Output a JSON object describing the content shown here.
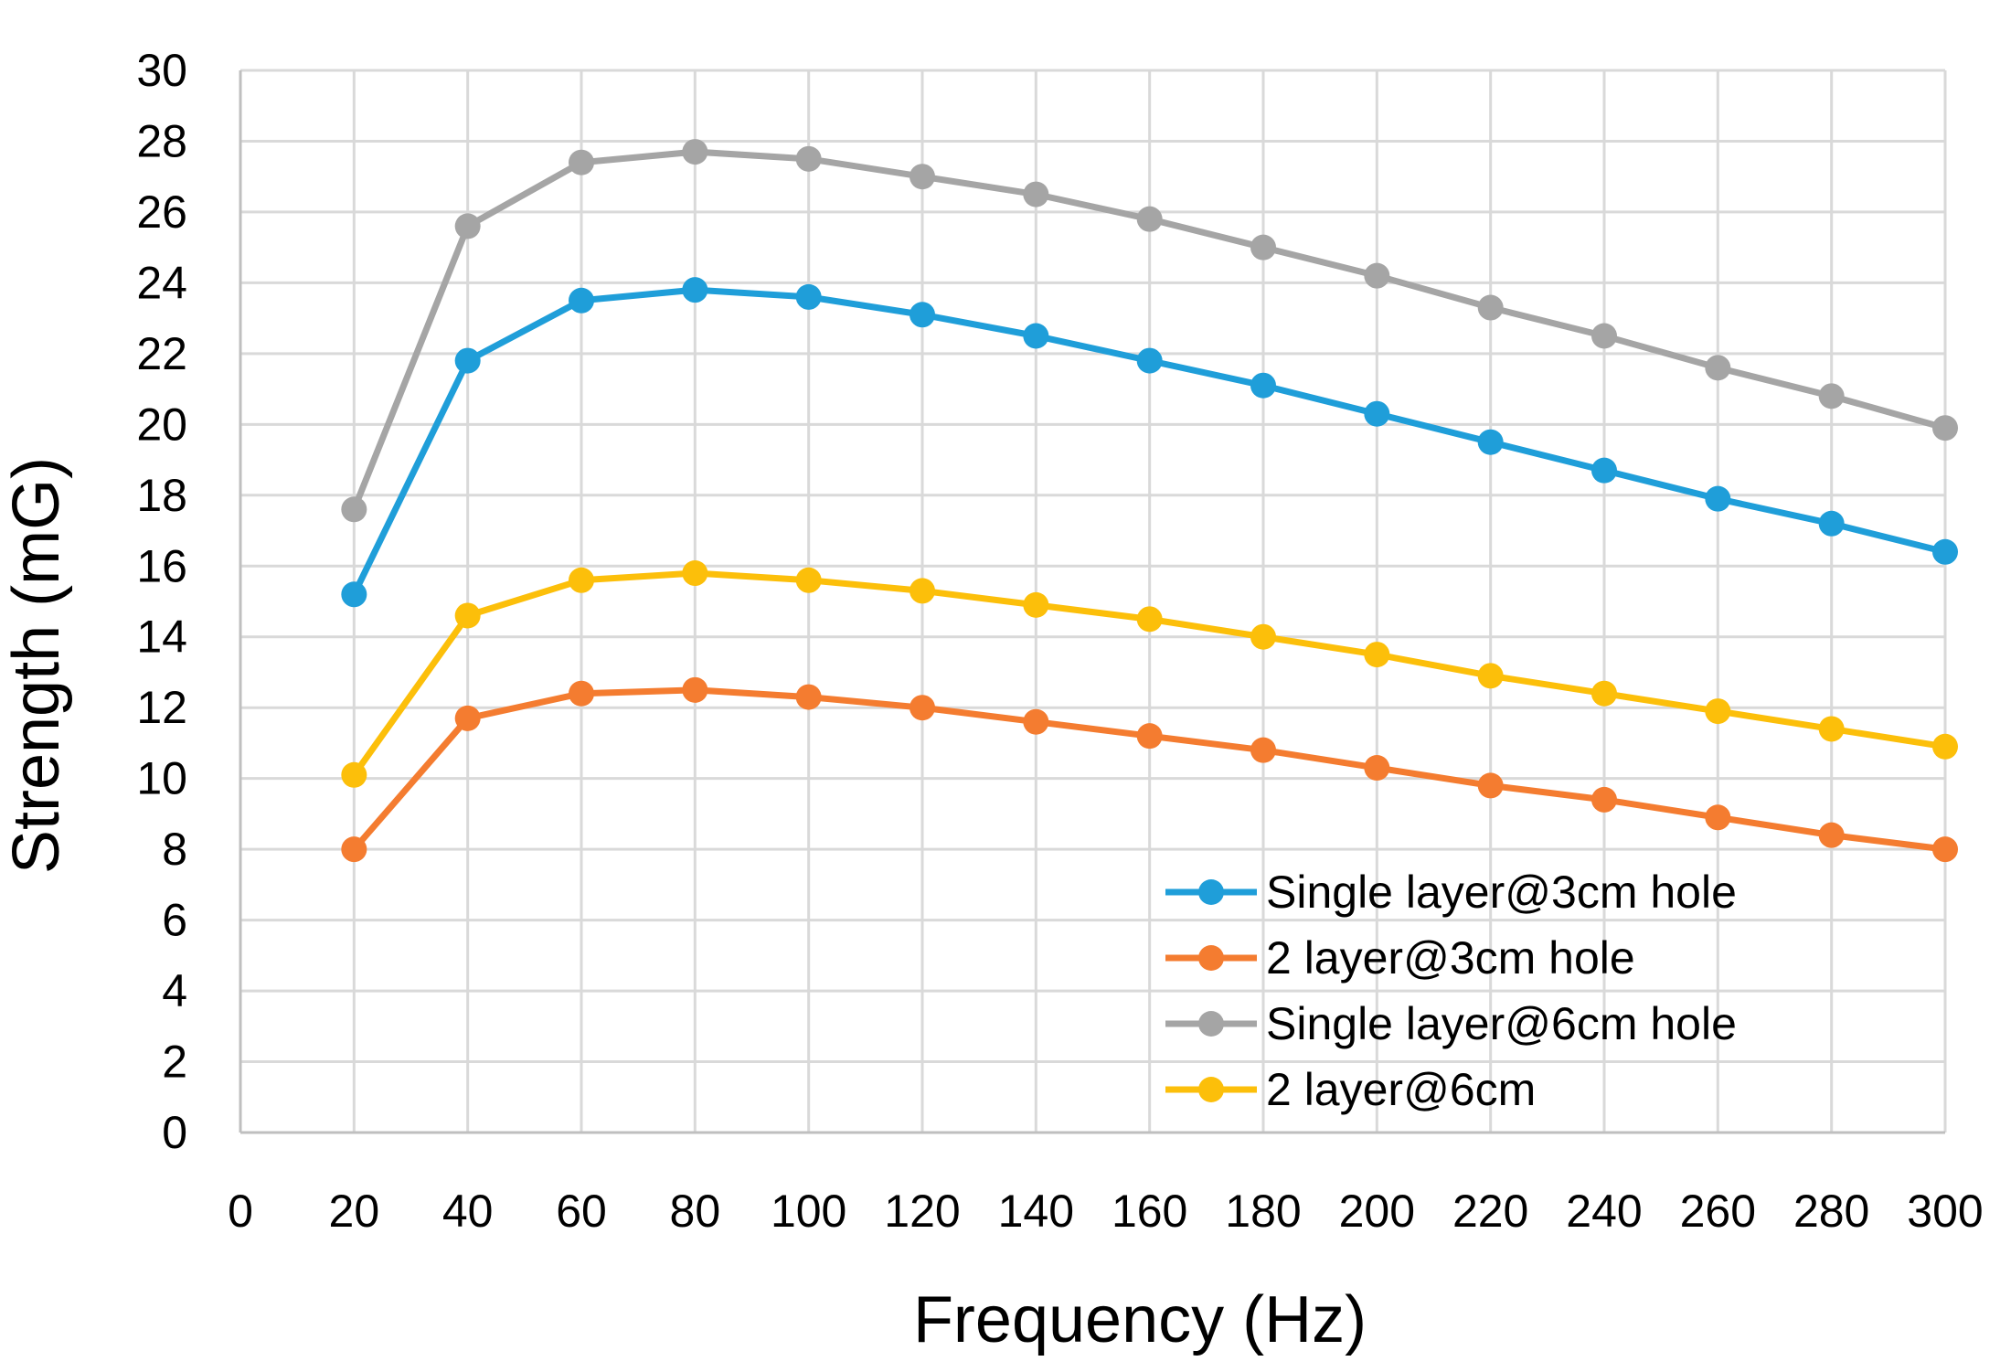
{
  "chart_data": {
    "type": "line",
    "title": "",
    "xlabel": "Frequency (Hz)",
    "ylabel": "Strength (mG)",
    "xlim": [
      0,
      300
    ],
    "ylim": [
      0,
      30
    ],
    "xticks": [
      0,
      20,
      40,
      60,
      80,
      100,
      120,
      140,
      160,
      180,
      200,
      220,
      240,
      260,
      280,
      300
    ],
    "yticks": [
      0,
      2,
      4,
      6,
      8,
      10,
      12,
      14,
      16,
      18,
      20,
      22,
      24,
      26,
      28,
      30
    ],
    "grid": true,
    "legend_position": "bottom-right",
    "x": [
      20,
      40,
      60,
      80,
      100,
      120,
      140,
      160,
      180,
      200,
      220,
      240,
      260,
      280,
      300
    ],
    "series": [
      {
        "name": "Single layer@3cm hole",
        "color": "#1f9ed9",
        "values": [
          15.2,
          21.8,
          23.5,
          23.8,
          23.6,
          23.1,
          22.5,
          21.8,
          21.1,
          20.3,
          19.5,
          18.7,
          17.9,
          17.2,
          16.4
        ]
      },
      {
        "name": "2 layer@3cm hole",
        "color": "#f47c30",
        "values": [
          8.0,
          11.7,
          12.4,
          12.5,
          12.3,
          12.0,
          11.6,
          11.2,
          10.8,
          10.3,
          9.8,
          9.4,
          8.9,
          8.4,
          8.0
        ]
      },
      {
        "name": "Single layer@6cm hole",
        "color": "#a5a5a5",
        "values": [
          17.6,
          25.6,
          27.4,
          27.7,
          27.5,
          27.0,
          26.5,
          25.8,
          25.0,
          24.2,
          23.3,
          22.5,
          21.6,
          20.8,
          19.9
        ]
      },
      {
        "name": "2 layer@6cm",
        "color": "#fcbf0a",
        "values": [
          10.1,
          14.6,
          15.6,
          15.8,
          15.6,
          15.3,
          14.9,
          14.5,
          14.0,
          13.5,
          12.9,
          12.4,
          11.9,
          11.4,
          10.9
        ]
      }
    ]
  }
}
